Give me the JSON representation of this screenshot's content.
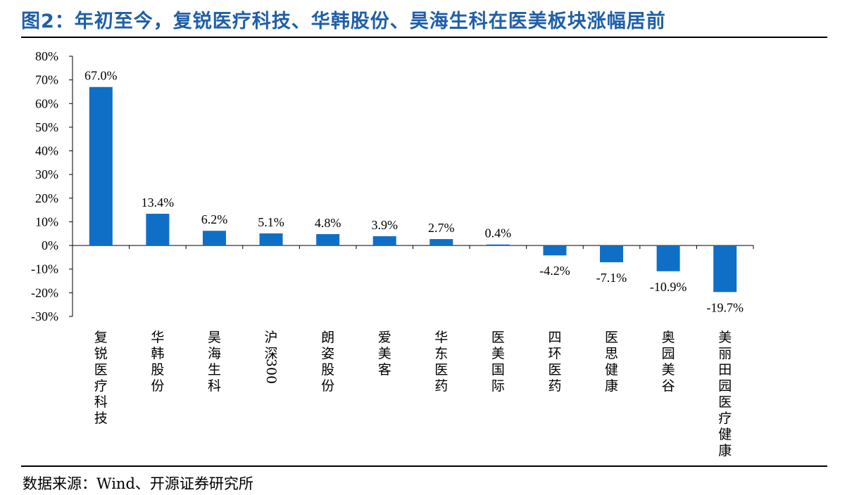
{
  "header": {
    "title": "图2：年初至今，复锐医疗科技、华韩股份、昊海生科在医美板块涨幅居前"
  },
  "footer": {
    "source": "数据来源：Wind、开源证券研究所"
  },
  "colors": {
    "bar": "#0f6fc6",
    "title": "#1f5fa8"
  },
  "chart_data": {
    "type": "bar",
    "title": "",
    "xlabel": "",
    "ylabel": "",
    "ylim": [
      -30,
      80
    ],
    "yticks": [
      "80%",
      "70%",
      "60%",
      "50%",
      "40%",
      "30%",
      "20%",
      "10%",
      "0%",
      "-10%",
      "-20%",
      "-30%"
    ],
    "ytick_values": [
      80,
      70,
      60,
      50,
      40,
      30,
      20,
      10,
      0,
      -10,
      -20,
      -30
    ],
    "grid": false,
    "categories": [
      "复锐医疗科技",
      "华韩股份",
      "昊海生科",
      "沪深300",
      "朗姿股份",
      "爱美客",
      "华东医药",
      "医美国际",
      "四环医药",
      "医思健康",
      "奥园美谷",
      "美丽田园医疗健康"
    ],
    "values": [
      67.0,
      13.4,
      6.2,
      5.1,
      4.8,
      3.9,
      2.7,
      0.4,
      -4.2,
      -7.1,
      -10.9,
      -19.7
    ],
    "value_labels": [
      "67.0%",
      "13.4%",
      "6.2%",
      "5.1%",
      "4.8%",
      "3.9%",
      "2.7%",
      "0.4%",
      "-4.2%",
      "-7.1%",
      "-10.9%",
      "-19.7%"
    ]
  }
}
